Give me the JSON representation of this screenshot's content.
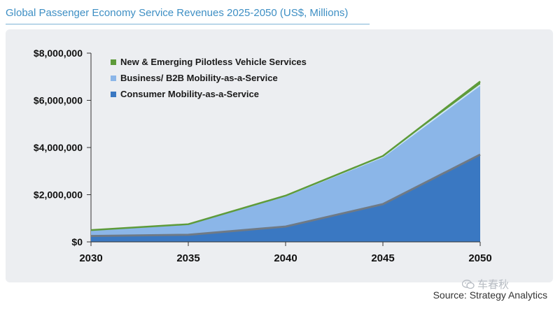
{
  "chart_data": {
    "type": "area",
    "title": "Global Passenger Economy Service Revenues 2025-2050 (US$, Millions)",
    "x": [
      "2030",
      "2035",
      "2040",
      "2045",
      "2050"
    ],
    "yticks": [
      "$0",
      "$2,000,000",
      "$4,000,000",
      "$6,000,000",
      "$8,000,000"
    ],
    "ylim": [
      0,
      8000000
    ],
    "stacked": true,
    "legend_position": "top-left",
    "series": [
      {
        "name": "Consumer Mobility-as-a-Service",
        "values": [
          250000,
          300000,
          650000,
          1600000,
          3700000
        ],
        "color": "#3a78c2"
      },
      {
        "name": "Business/ B2B Mobility-as-a-Service",
        "values": [
          250000,
          450000,
          1300000,
          2000000,
          2950000
        ],
        "color": "#8bb6e8"
      },
      {
        "name": "New & Emerging Pilotless Vehicle Services",
        "values": [
          0,
          0,
          10000,
          40000,
          150000
        ],
        "color": "#5e9b3a"
      }
    ],
    "source": "Source: Strategy Analytics"
  },
  "watermark": {
    "text": "车春秋",
    "icon": "wechat-icon"
  }
}
